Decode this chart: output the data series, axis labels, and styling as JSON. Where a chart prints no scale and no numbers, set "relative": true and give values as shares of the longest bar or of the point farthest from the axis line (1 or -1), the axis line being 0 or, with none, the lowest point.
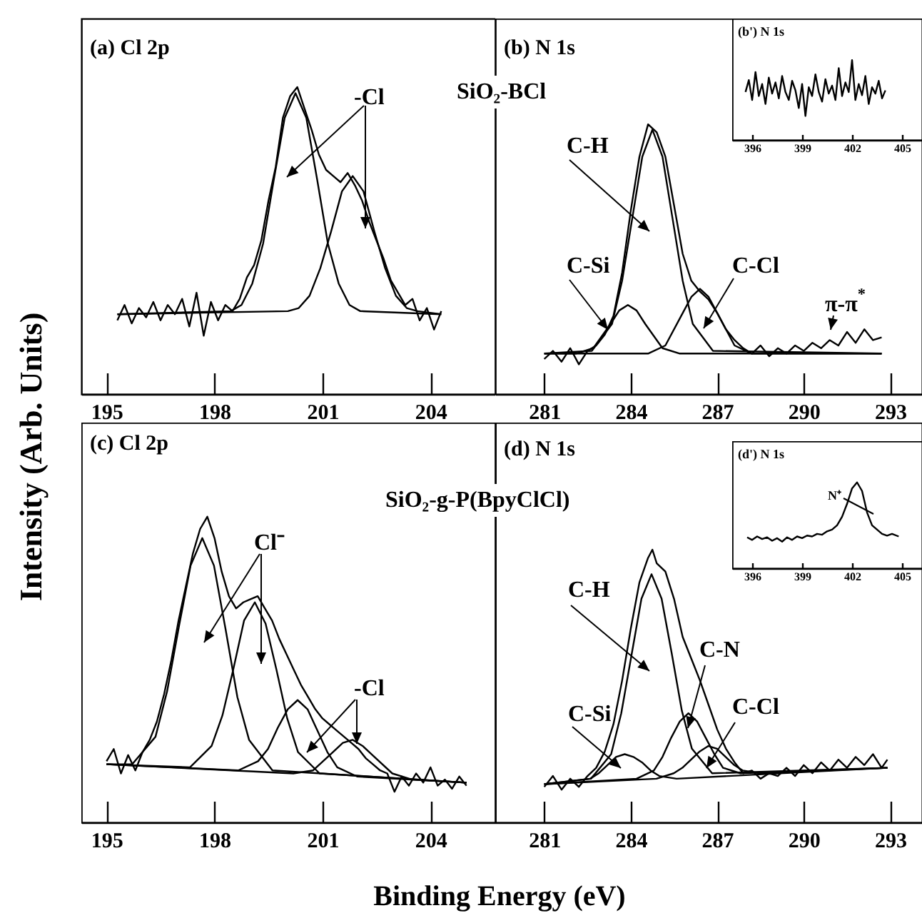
{
  "chart_data": [
    {
      "type": "line",
      "title": "(a) Cl 2p",
      "ylabel": "Intensity (Arb. Units)",
      "relative": true,
      "xlim": [
        194.3,
        205.8
      ],
      "xticks": [
        195,
        198,
        201,
        204
      ],
      "annotations": [
        "-Cl"
      ],
      "series": [
        {
          "color": "#000000",
          "x": [
            195.3,
            195.5,
            195.7,
            195.9,
            196.1,
            196.3,
            196.5,
            196.7,
            196.9,
            197.1,
            197.3,
            197.5,
            197.7,
            197.9,
            198.1,
            198.3,
            198.5,
            198.7,
            198.9,
            199.1,
            199.3,
            199.5,
            199.7,
            199.9,
            200.1,
            200.3,
            200.5,
            200.7,
            200.9,
            201.1,
            201.3,
            201.5,
            201.7,
            201.9,
            202.1,
            202.3,
            202.5,
            202.7,
            202.9,
            203.1,
            203.3,
            203.5,
            203.7,
            203.9,
            204.1,
            204.3
          ],
          "values": [
            0.24,
            0.29,
            0.23,
            0.28,
            0.25,
            0.3,
            0.24,
            0.29,
            0.26,
            0.31,
            0.22,
            0.33,
            0.19,
            0.3,
            0.24,
            0.29,
            0.27,
            0.31,
            0.38,
            0.42,
            0.5,
            0.63,
            0.74,
            0.9,
            0.97,
            1,
            0.93,
            0.86,
            0.78,
            0.73,
            0.71,
            0.69,
            0.72,
            0.68,
            0.63,
            0.56,
            0.5,
            0.44,
            0.37,
            0.33,
            0.29,
            0.31,
            0.24,
            0.28,
            0.21,
            0.27
          ]
        },
        {
          "color": "#000000",
          "x": [
            195.3,
            198.45,
            198.75,
            199.05,
            199.35,
            199.65,
            199.95,
            200.25,
            200.55,
            200.85,
            201.15,
            201.45,
            201.75,
            202.05,
            204.3
          ],
          "values": [
            0.26,
            0.27,
            0.29,
            0.36,
            0.49,
            0.7,
            0.9,
            0.98,
            0.9,
            0.7,
            0.49,
            0.36,
            0.29,
            0.27,
            0.26
          ]
        },
        {
          "color": "#000000",
          "x": [
            195.3,
            200.04,
            200.34,
            200.64,
            200.94,
            201.24,
            201.54,
            201.84,
            202.14,
            202.44,
            202.74,
            203.04,
            203.34,
            203.64,
            204.3
          ],
          "values": [
            0.26,
            0.27,
            0.28,
            0.32,
            0.41,
            0.53,
            0.66,
            0.71,
            0.66,
            0.53,
            0.41,
            0.32,
            0.28,
            0.27,
            0.26
          ]
        }
      ]
    },
    {
      "type": "line",
      "title": "(b) N 1s",
      "relative": true,
      "xlim": [
        279.3,
        294.1
      ],
      "xticks": [
        281,
        284,
        287,
        290,
        293
      ],
      "annotations": [
        "SiO₂-BCl",
        "C-H",
        "C-Si",
        "C-Cl",
        "π-π$^{*}$"
      ],
      "series": [
        {
          "color": "#000000",
          "x": [
            281,
            281.3,
            281.6,
            281.9,
            282.2,
            282.5,
            282.8,
            283.1,
            283.4,
            283.7,
            284,
            284.3,
            284.6,
            284.9,
            285.2,
            285.5,
            285.8,
            286.1,
            286.4,
            286.7,
            287,
            287.3,
            287.6,
            287.9,
            288.2,
            288.5,
            288.8,
            289.1,
            289.4,
            289.7,
            290,
            290.3,
            290.6,
            290.9,
            291.2,
            291.5,
            291.8,
            292.1,
            292.4,
            292.7
          ],
          "values": [
            0.13,
            0.16,
            0.12,
            0.17,
            0.11,
            0.16,
            0.18,
            0.22,
            0.29,
            0.45,
            0.68,
            0.88,
            1,
            0.97,
            0.88,
            0.7,
            0.52,
            0.42,
            0.38,
            0.35,
            0.3,
            0.24,
            0.2,
            0.17,
            0.15,
            0.18,
            0.14,
            0.17,
            0.15,
            0.18,
            0.16,
            0.19,
            0.17,
            0.2,
            0.18,
            0.23,
            0.19,
            0.24,
            0.2,
            0.21
          ]
        },
        {
          "color": "#000000",
          "x": [
            281,
            282.65,
            283.35,
            283.7,
            284.05,
            284.4,
            284.75,
            285.1,
            285.45,
            285.8,
            286.15,
            286.85,
            292.7
          ],
          "values": [
            0.15,
            0.16,
            0.26,
            0.42,
            0.65,
            0.88,
            0.98,
            0.88,
            0.65,
            0.42,
            0.26,
            0.16,
            0.15
          ]
        },
        {
          "color": "#000000",
          "x": [
            281,
            282.1,
            282.7,
            283.3,
            283.6,
            283.9,
            284.2,
            284.5,
            285.1,
            285.7,
            292.7
          ],
          "values": [
            0.15,
            0.15,
            0.17,
            0.26,
            0.31,
            0.33,
            0.31,
            0.26,
            0.17,
            0.15,
            0.15
          ]
        },
        {
          "color": "#000000",
          "x": [
            281,
            284.6,
            285.2,
            285.8,
            286.1,
            286.4,
            286.7,
            287,
            287.6,
            288.2,
            292.7
          ],
          "values": [
            0.15,
            0.15,
            0.18,
            0.3,
            0.36,
            0.39,
            0.36,
            0.3,
            0.18,
            0.15,
            0.15
          ]
        }
      ]
    },
    {
      "type": "line",
      "title": "(b') N 1s",
      "relative": true,
      "xlim": [
        394.8,
        406.2
      ],
      "xticks": [
        396,
        399,
        402,
        405
      ],
      "series": [
        {
          "color": "#000000",
          "x": [
            395.6,
            395.8,
            396,
            396.2,
            396.4,
            396.6,
            396.8,
            397,
            397.2,
            397.4,
            397.6,
            397.8,
            398,
            398.2,
            398.4,
            398.6,
            398.8,
            399,
            399.2,
            399.4,
            399.6,
            399.8,
            400,
            400.2,
            400.4,
            400.6,
            400.8,
            401,
            401.2,
            401.4,
            401.6,
            401.8,
            402,
            402.2,
            402.4,
            402.6,
            402.8,
            403,
            403.2,
            403.4,
            403.6,
            403.8,
            404
          ],
          "values": [
            0.6,
            0.75,
            0.5,
            0.85,
            0.55,
            0.7,
            0.45,
            0.78,
            0.58,
            0.72,
            0.52,
            0.8,
            0.6,
            0.5,
            0.74,
            0.62,
            0.4,
            0.7,
            0.3,
            0.66,
            0.55,
            0.82,
            0.6,
            0.48,
            0.76,
            0.58,
            0.68,
            0.5,
            0.9,
            0.55,
            0.72,
            0.6,
            1,
            0.5,
            0.7,
            0.56,
            0.8,
            0.45,
            0.66,
            0.58,
            0.74,
            0.52,
            0.62
          ]
        }
      ]
    },
    {
      "type": "line",
      "title": "(c) Cl 2p",
      "xlabel": "Binding Energy (eV)",
      "relative": true,
      "xlim": [
        194.3,
        205.8
      ],
      "xticks": [
        195,
        198,
        201,
        204
      ],
      "annotations": [
        "Cl⁻",
        "-Cl"
      ],
      "series": [
        {
          "color": "#000000",
          "x": [
            195,
            195.2,
            195.4,
            195.6,
            195.8,
            196,
            196.2,
            196.4,
            196.6,
            196.8,
            197,
            197.2,
            197.4,
            197.6,
            197.8,
            198,
            198.2,
            198.4,
            198.6,
            198.8,
            199,
            199.2,
            199.4,
            199.6,
            199.8,
            200,
            200.2,
            200.4,
            200.6,
            200.8,
            201,
            201.2,
            201.4,
            201.6,
            201.8,
            202,
            202.2,
            202.4,
            202.6,
            202.8,
            203,
            203.2,
            203.4,
            203.6,
            203.8,
            204,
            204.2,
            204.4,
            204.6,
            204.8,
            205
          ],
          "values": [
            0.2,
            0.24,
            0.16,
            0.22,
            0.17,
            0.23,
            0.27,
            0.33,
            0.42,
            0.53,
            0.66,
            0.77,
            0.88,
            0.96,
            1,
            0.93,
            0.82,
            0.74,
            0.7,
            0.72,
            0.73,
            0.74,
            0.7,
            0.66,
            0.6,
            0.55,
            0.5,
            0.45,
            0.41,
            0.37,
            0.34,
            0.32,
            0.3,
            0.28,
            0.26,
            0.24,
            0.21,
            0.19,
            0.17,
            0.16,
            0.1,
            0.15,
            0.12,
            0.16,
            0.13,
            0.18,
            0.12,
            0.14,
            0.11,
            0.15,
            0.12
          ]
        },
        {
          "color": "#000000",
          "x": [
            195,
            195.71,
            196.36,
            196.685,
            197.01,
            197.335,
            197.66,
            197.985,
            198.31,
            198.635,
            198.96,
            199.61,
            205
          ],
          "values": [
            0.19,
            0.19,
            0.28,
            0.43,
            0.64,
            0.84,
            0.93,
            0.84,
            0.63,
            0.41,
            0.27,
            0.17,
            0.13
          ]
        },
        {
          "color": "#000000",
          "x": [
            195,
            197.32,
            197.92,
            198.22,
            198.52,
            198.82,
            199.12,
            199.42,
            199.72,
            200.02,
            200.32,
            200.92,
            205
          ],
          "values": [
            0.19,
            0.18,
            0.25,
            0.35,
            0.5,
            0.66,
            0.72,
            0.65,
            0.5,
            0.34,
            0.23,
            0.16,
            0.13
          ]
        },
        {
          "color": "#000000",
          "x": [
            195,
            198.66,
            199.21,
            199.485,
            199.76,
            200.035,
            200.31,
            200.585,
            200.86,
            201.135,
            201.41,
            201.96,
            205
          ],
          "values": [
            0.19,
            0.17,
            0.2,
            0.24,
            0.31,
            0.37,
            0.4,
            0.37,
            0.3,
            0.23,
            0.18,
            0.15,
            0.13
          ]
        },
        {
          "color": "#000000",
          "x": [
            195,
            200.19,
            200.74,
            201.29,
            201.565,
            201.84,
            202.115,
            202.39,
            202.94,
            203.49,
            205
          ],
          "values": [
            0.19,
            0.16,
            0.17,
            0.23,
            0.26,
            0.27,
            0.25,
            0.22,
            0.16,
            0.14,
            0.13
          ]
        }
      ]
    },
    {
      "type": "line",
      "title": "(d) N 1s",
      "relative": true,
      "xlim": [
        279.3,
        294.1
      ],
      "xticks": [
        281,
        284,
        287,
        290,
        293
      ],
      "annotations": [
        "SiO₂-g-P(BpyClCl)",
        "C-H",
        "C-N",
        "C-Si",
        "C-Cl"
      ],
      "series": [
        {
          "color": "#000000",
          "x": [
            281,
            281.3,
            281.6,
            281.9,
            282.2,
            282.5,
            282.8,
            283.1,
            283.4,
            283.7,
            284,
            284.3,
            284.6,
            284.75,
            284.9,
            285.2,
            285.5,
            285.8,
            286.1,
            286.4,
            286.7,
            287,
            287.3,
            287.6,
            287.9,
            288.2,
            288.5,
            288.8,
            289.1,
            289.4,
            289.7,
            290,
            290.3,
            290.6,
            290.9,
            291.2,
            291.5,
            291.8,
            292.1,
            292.4,
            292.7,
            292.9
          ],
          "values": [
            0.13,
            0.17,
            0.12,
            0.16,
            0.13,
            0.17,
            0.2,
            0.26,
            0.36,
            0.52,
            0.71,
            0.88,
            0.97,
            1,
            0.95,
            0.92,
            0.82,
            0.68,
            0.6,
            0.52,
            0.43,
            0.34,
            0.27,
            0.22,
            0.18,
            0.19,
            0.16,
            0.18,
            0.17,
            0.2,
            0.17,
            0.21,
            0.18,
            0.22,
            0.19,
            0.23,
            0.2,
            0.24,
            0.21,
            0.25,
            0.2,
            0.23
          ]
        },
        {
          "color": "#000000",
          "x": [
            281,
            282.62,
            283.32,
            283.67,
            284.02,
            284.37,
            284.72,
            285.07,
            285.42,
            285.77,
            286.12,
            286.82,
            292.9
          ],
          "values": [
            0.14,
            0.16,
            0.25,
            0.4,
            0.61,
            0.82,
            0.91,
            0.82,
            0.62,
            0.41,
            0.27,
            0.18,
            0.2
          ]
        },
        {
          "color": "#000000",
          "x": [
            281,
            282.59,
            282.89,
            283.19,
            283.49,
            283.79,
            284.09,
            284.39,
            284.69,
            284.99,
            285.59,
            292.9
          ],
          "values": [
            0.14,
            0.16,
            0.18,
            0.21,
            0.24,
            0.25,
            0.24,
            0.22,
            0.19,
            0.17,
            0.16,
            0.2
          ]
        },
        {
          "color": "#000000",
          "x": [
            281,
            284.2,
            284.8,
            285.1,
            285.4,
            285.7,
            286,
            286.3,
            286.6,
            286.9,
            287.2,
            287.8,
            292.9
          ],
          "values": [
            0.14,
            0.16,
            0.19,
            0.24,
            0.31,
            0.37,
            0.4,
            0.37,
            0.31,
            0.25,
            0.2,
            0.18,
            0.2
          ]
        },
        {
          "color": "#000000",
          "x": [
            281,
            284.89,
            285.49,
            285.79,
            286.09,
            286.39,
            286.69,
            286.99,
            287.29,
            287.59,
            287.89,
            288.49,
            292.9
          ],
          "values": [
            0.14,
            0.16,
            0.18,
            0.2,
            0.23,
            0.26,
            0.28,
            0.27,
            0.24,
            0.21,
            0.19,
            0.18,
            0.2
          ]
        }
      ]
    },
    {
      "type": "line",
      "title": "(d') N 1s",
      "relative": true,
      "xlim": [
        394.8,
        406.2
      ],
      "xticks": [
        396,
        399,
        402,
        405
      ],
      "annotations": [
        "N⁺"
      ],
      "series": [
        {
          "color": "#000000",
          "x": [
            395.7,
            396,
            396.3,
            396.6,
            396.9,
            397.2,
            397.5,
            397.8,
            398.1,
            398.4,
            398.7,
            399,
            399.3,
            399.6,
            399.9,
            400.2,
            400.5,
            400.8,
            401.1,
            401.4,
            401.7,
            402,
            402.3,
            402.6,
            402.9,
            403.2,
            403.5,
            403.8,
            404.1,
            404.4,
            404.8
          ],
          "values": [
            0.36,
            0.33,
            0.37,
            0.34,
            0.36,
            0.32,
            0.35,
            0.31,
            0.36,
            0.33,
            0.37,
            0.35,
            0.38,
            0.37,
            0.4,
            0.39,
            0.43,
            0.45,
            0.5,
            0.6,
            0.75,
            0.93,
            1,
            0.9,
            0.65,
            0.5,
            0.45,
            0.4,
            0.38,
            0.4,
            0.37
          ]
        }
      ]
    }
  ]
}
